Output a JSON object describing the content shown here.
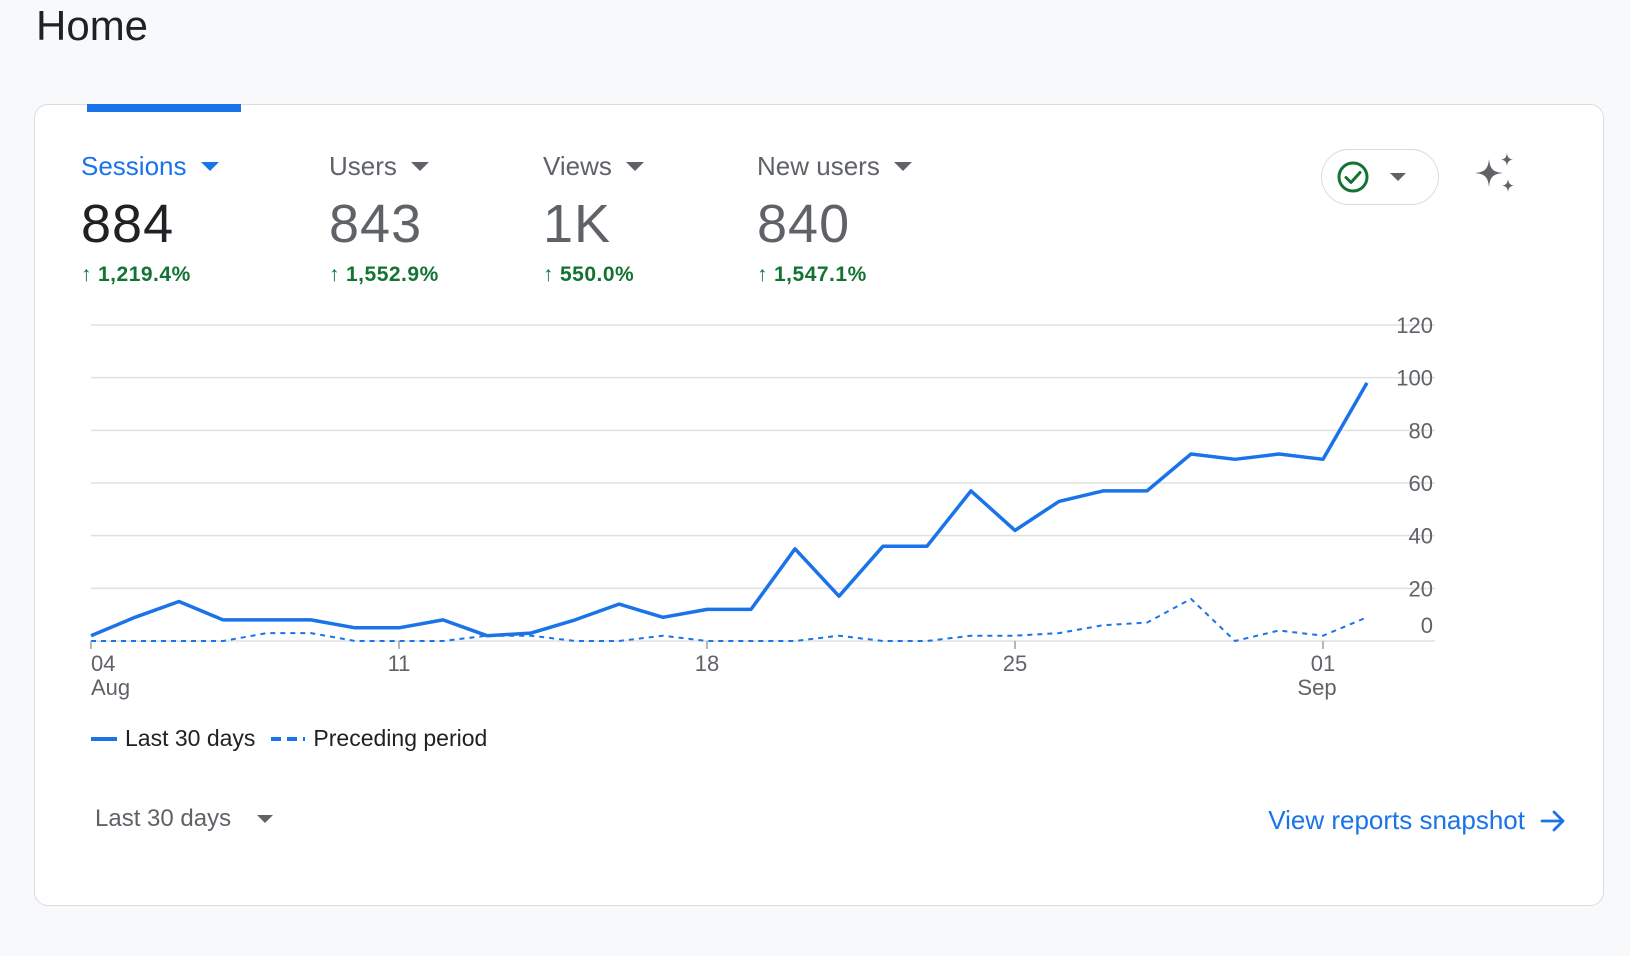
{
  "page": {
    "title": "Home"
  },
  "metrics": [
    {
      "label": "Sessions",
      "value": "884",
      "change": "1,219.4%"
    },
    {
      "label": "Users",
      "value": "843",
      "change": "1,552.9%"
    },
    {
      "label": "Views",
      "value": "1K",
      "change": "550.0%"
    },
    {
      "label": "New users",
      "value": "840",
      "change": "1,547.1%"
    }
  ],
  "colors": {
    "accent": "#1a73e8",
    "positive": "#137333",
    "muted": "#5f6368"
  },
  "icons": {
    "status": "check-circle-icon",
    "insights": "sparkle-icon",
    "change": "arrow-up-icon",
    "link": "arrow-right-icon"
  },
  "chart_data": {
    "type": "line",
    "title": "",
    "xlabel": "",
    "ylabel": "",
    "ylim": [
      0,
      120
    ],
    "y_ticks": [
      "120",
      "100",
      "80",
      "60",
      "40",
      "20",
      "0"
    ],
    "x_tick_labels": [
      {
        "day": "04",
        "month": "Aug"
      },
      {
        "day": "11",
        "month": ""
      },
      {
        "day": "18",
        "month": ""
      },
      {
        "day": "25",
        "month": ""
      },
      {
        "day": "01",
        "month": "Sep"
      }
    ],
    "x": [
      "Aug 04",
      "Aug 05",
      "Aug 06",
      "Aug 07",
      "Aug 08",
      "Aug 09",
      "Aug 10",
      "Aug 11",
      "Aug 12",
      "Aug 13",
      "Aug 14",
      "Aug 15",
      "Aug 16",
      "Aug 17",
      "Aug 18",
      "Aug 19",
      "Aug 20",
      "Aug 21",
      "Aug 22",
      "Aug 23",
      "Aug 24",
      "Aug 25",
      "Aug 26",
      "Aug 27",
      "Aug 28",
      "Aug 29",
      "Aug 30",
      "Aug 31",
      "Sep 01",
      "Sep 02"
    ],
    "series": [
      {
        "name": "Last 30 days",
        "style": "solid",
        "values": [
          2,
          9,
          15,
          8,
          8,
          8,
          5,
          5,
          8,
          2,
          3,
          8,
          14,
          9,
          12,
          12,
          35,
          17,
          36,
          36,
          57,
          42,
          53,
          57,
          57,
          71,
          69,
          71,
          69,
          98
        ]
      },
      {
        "name": "Preceding period",
        "style": "dashed",
        "values": [
          0,
          0,
          0,
          0,
          3,
          3,
          0,
          0,
          0,
          2,
          2,
          0,
          0,
          2,
          0,
          0,
          0,
          2,
          0,
          0,
          2,
          2,
          3,
          6,
          7,
          16,
          0,
          4,
          2,
          9
        ]
      }
    ],
    "grid": true,
    "legend": "bottom-left"
  },
  "footer": {
    "date_range": "Last 30 days",
    "view_reports": "View reports snapshot"
  }
}
